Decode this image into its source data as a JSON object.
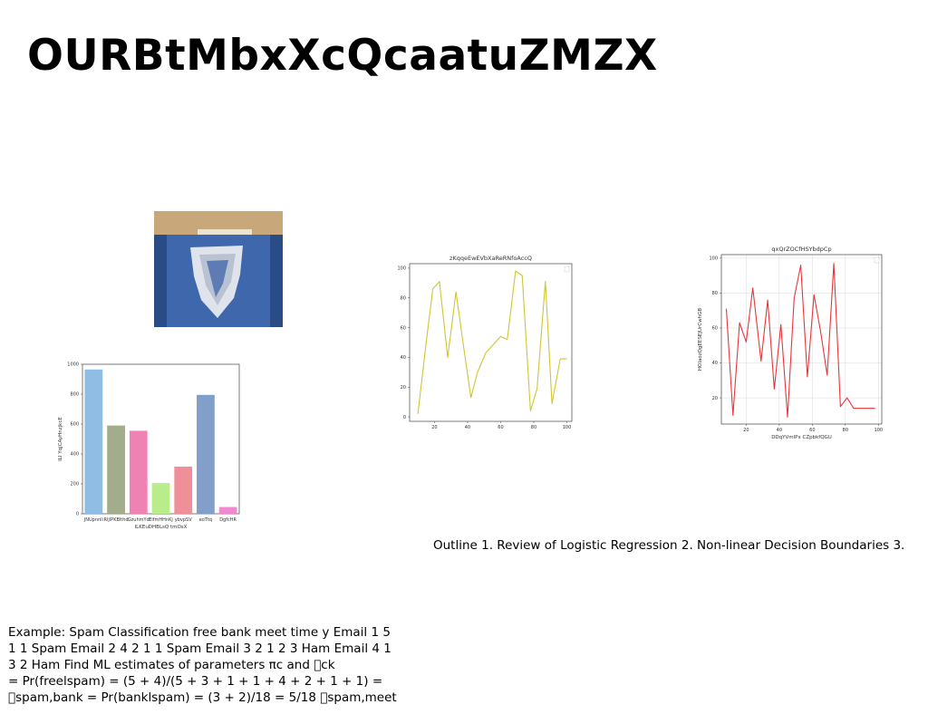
{
  "slide": {
    "title": "OURBtMbxXcQcaatuZMZX",
    "outline_text": "Outline 1. Review of Logistic Regression 2. Non-linear Decision Boundaries 3.",
    "example_lines": [
      "Example: Spam Classification free bank meet time y Email 1 5",
      "1 1 Spam Email 2 4 2 1 1 Spam Email 3 2 1 2 3 Ham Email 4 1",
      "3 2 Ham Find ML estimates of parameters πc and \u0000ck",
      "= Pr(freelspam) = (5 + 4)/(5 + 3 + 1 + 1 + 4 + 2 + 1 + 1) =",
      "\u0000spam,bank = Pr(banklspam) = (3 + 2)/18 = 5/18 \u0000spam,meet"
    ]
  },
  "photo": {
    "name": "ripped-jeans-pocket-photo",
    "colors": {
      "sky": "#a9bedc",
      "wall": "#c8a77a",
      "denim": "#3f67ab",
      "denim_dark": "#2a4c86",
      "threads": "#dfe4ec"
    }
  },
  "chart_data": [
    {
      "id": "bar",
      "type": "bar",
      "title": "",
      "xlabel": "ILKEuDHBLsQ tmOsX",
      "ylabel": "ILI YqjCAyHnzjkcE",
      "categories": [
        "JNUpnnli",
        "RljlPKBlthd",
        "GzuhmYd",
        "EifmHHnKj",
        "ybvpSV",
        "eoTtq",
        "DgfcHR"
      ],
      "values": [
        965,
        590,
        555,
        205,
        315,
        795,
        45
      ],
      "colors": [
        "#8fbde3",
        "#a3ad8b",
        "#ee82b2",
        "#b9ec8b",
        "#ee8f9a",
        "#819fc9",
        "#f08ad0"
      ],
      "ylim": [
        0,
        1000
      ],
      "yticks": [
        0,
        200,
        400,
        600,
        800,
        1000
      ],
      "grid": false
    },
    {
      "id": "line-yellow",
      "type": "line",
      "title": "zKqqeEwEVbXaReRNfoAccQ",
      "xlabel": "",
      "ylabel": "",
      "series": [
        {
          "color": "#cfc534",
          "x": [
            10,
            15,
            19,
            23,
            28,
            33,
            37,
            42,
            46,
            51,
            55,
            60,
            64,
            69,
            73,
            78,
            82,
            87,
            91,
            96,
            100
          ],
          "y": [
            2,
            50,
            86,
            91,
            40,
            84,
            52,
            13,
            30,
            43,
            48,
            54,
            52,
            98,
            95,
            4,
            19,
            91,
            9,
            39,
            39
          ]
        }
      ],
      "xlim": [
        5,
        103
      ],
      "ylim": [
        -3,
        103
      ],
      "xticks": [
        20,
        40,
        60,
        80,
        100
      ],
      "yticks": [
        0,
        20,
        40,
        60,
        80,
        100
      ],
      "grid": false,
      "legend": "top-right"
    },
    {
      "id": "line-red",
      "type": "line",
      "title": "qxQrZOCfHSYbdpCp",
      "xlabel": "DDqYVmlPx CZpbkfQGU",
      "ylabel": "HOIaozQgEESEJUrCwhGB",
      "series": [
        {
          "color": "#e8353b",
          "x": [
            8,
            12,
            16,
            20,
            24,
            29,
            33,
            37,
            41,
            45,
            49,
            53,
            57,
            61,
            65,
            69,
            73,
            77,
            81,
            85,
            90,
            94,
            98
          ],
          "y": [
            71,
            10,
            63,
            52,
            83,
            41,
            76,
            25,
            62,
            9,
            77,
            96,
            32,
            79,
            58,
            33,
            97,
            15,
            20,
            14,
            14,
            14,
            14
          ]
        }
      ],
      "xlim": [
        5,
        102
      ],
      "ylim": [
        5,
        102
      ],
      "xticks": [
        20,
        40,
        60,
        80,
        100
      ],
      "yticks": [
        20,
        40,
        60,
        80,
        100
      ],
      "grid": true,
      "legend": "top-right"
    }
  ]
}
